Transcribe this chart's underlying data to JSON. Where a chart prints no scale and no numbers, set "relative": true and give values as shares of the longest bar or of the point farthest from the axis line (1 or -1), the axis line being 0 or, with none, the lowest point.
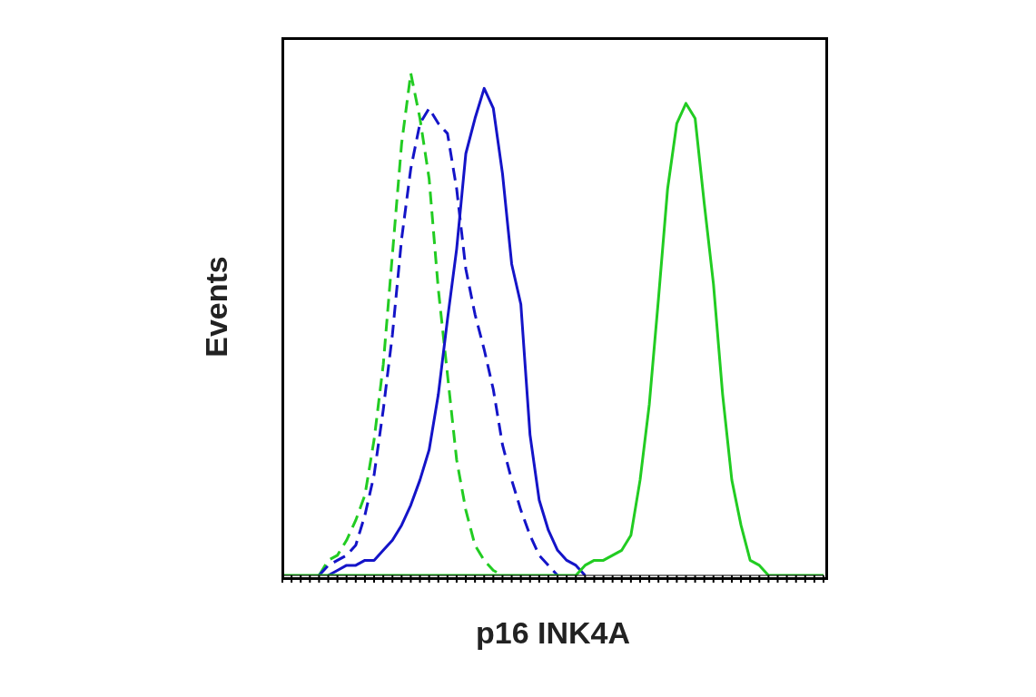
{
  "chart_data": {
    "type": "line",
    "xlabel": "p16 INK4A",
    "ylabel": "Events",
    "relative": true,
    "marker": "none",
    "grid": false,
    "legend": false,
    "categories": [
      null,
      null,
      null,
      null,
      null,
      null,
      null,
      null,
      null,
      null,
      null,
      null,
      null,
      null,
      null,
      null,
      null,
      null,
      null,
      null,
      null,
      null,
      null,
      null,
      null,
      null,
      null,
      null,
      null,
      null,
      null,
      null,
      null,
      null,
      null,
      null,
      null,
      null,
      null,
      null,
      null,
      null,
      null,
      null,
      null,
      null,
      null,
      null,
      null,
      null,
      null,
      null,
      null,
      null,
      null,
      null,
      null,
      null,
      null,
      null
    ],
    "series": [
      {
        "color": "#22cc22",
        "line_style": "dashed",
        "values": [
          null,
          null,
          null,
          null,
          0,
          0.03,
          0.04,
          0.07,
          0.11,
          0.16,
          0.27,
          0.42,
          0.64,
          0.86,
          1,
          0.91,
          0.79,
          0.57,
          0.4,
          0.23,
          0.13,
          0.06,
          0.03,
          0.01,
          0,
          null,
          null,
          null,
          null,
          null,
          null,
          null,
          null,
          null,
          null,
          null,
          null,
          null,
          null,
          null,
          null,
          null,
          null,
          null,
          null,
          null,
          null,
          null,
          null,
          null,
          null,
          null,
          null,
          null,
          null,
          null,
          null,
          null,
          null,
          null
        ]
      },
      {
        "color": "#1414c8",
        "line_style": "dashed",
        "values": [
          null,
          null,
          null,
          null,
          0,
          0.02,
          0.03,
          0.04,
          0.06,
          0.12,
          0.2,
          0.33,
          0.48,
          0.67,
          0.81,
          0.9,
          0.93,
          0.9,
          0.88,
          0.77,
          0.61,
          0.52,
          0.45,
          0.37,
          0.26,
          0.19,
          0.13,
          0.08,
          0.04,
          0.02,
          0,
          null,
          null,
          null,
          null,
          null,
          null,
          null,
          null,
          null,
          null,
          null,
          null,
          null,
          null,
          null,
          null,
          null,
          null,
          null,
          null,
          null,
          null,
          null,
          null,
          null,
          null,
          null,
          null,
          null
        ]
      },
      {
        "color": "#1414c8",
        "line_style": "solid",
        "values": [
          null,
          null,
          null,
          null,
          null,
          0,
          0.01,
          0.02,
          0.02,
          0.03,
          0.03,
          0.05,
          0.07,
          0.1,
          0.14,
          0.19,
          0.25,
          0.36,
          0.51,
          0.65,
          0.84,
          0.91,
          0.97,
          0.93,
          0.8,
          0.62,
          0.54,
          0.28,
          0.15,
          0.09,
          0.05,
          0.03,
          0.02,
          0,
          null,
          null,
          null,
          null,
          null,
          null,
          null,
          null,
          null,
          null,
          null,
          null,
          null,
          null,
          null,
          null,
          null,
          null,
          null,
          null,
          null,
          null,
          null,
          null,
          null,
          null
        ]
      },
      {
        "color": "#22cc22",
        "line_style": "solid",
        "values": [
          0,
          0,
          0,
          0,
          0,
          0,
          0,
          0,
          0,
          0,
          0,
          0,
          0,
          0,
          0,
          0,
          0,
          0,
          0,
          0,
          0,
          0,
          0,
          0,
          0,
          0,
          0,
          0,
          0,
          0,
          0,
          0,
          0,
          0.02,
          0.03,
          0.03,
          0.04,
          0.05,
          0.08,
          0.19,
          0.34,
          0.55,
          0.77,
          0.9,
          0.94,
          0.91,
          0.74,
          0.58,
          0.36,
          0.19,
          0.1,
          0.03,
          0.02,
          0,
          0,
          0,
          0,
          0,
          0,
          0
        ]
      }
    ]
  }
}
